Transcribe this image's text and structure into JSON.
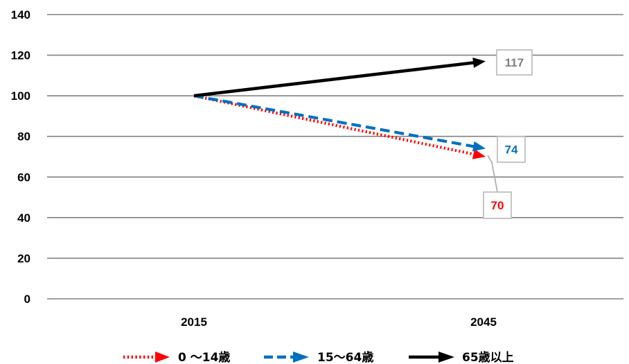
{
  "chart_data": {
    "type": "line",
    "title": "",
    "xlabel": "",
    "ylabel": "",
    "categories": [
      "2015",
      "2045"
    ],
    "ylim": [
      0,
      140
    ],
    "yticks": [
      0,
      20,
      40,
      60,
      80,
      100,
      120,
      140
    ],
    "y_tick_labels": [
      "0",
      "20",
      "40",
      "60",
      "80",
      "100",
      "120",
      "140"
    ],
    "grid": "horizontal",
    "legend_position": "bottom",
    "series": [
      {
        "name": "0 〜14歳",
        "values": [
          100,
          70
        ],
        "end_label": "70",
        "color": "#ff0000",
        "line_style": "dotted",
        "arrow": true
      },
      {
        "name": "15〜64歳",
        "values": [
          100,
          74
        ],
        "end_label": "74",
        "color": "#0070c0",
        "line_style": "dashed",
        "arrow": true
      },
      {
        "name": "65歳以上",
        "values": [
          100,
          117
        ],
        "end_label": "117",
        "color": "#000000",
        "line_style": "solid",
        "arrow": true
      }
    ],
    "label_colors": {
      "0 〜14歳": "#ff0000",
      "15〜64歳": "#0070c0",
      "65歳以上": "#7f7f7f"
    },
    "grid_color": "#808080",
    "label_border_color": "#bfbfbf"
  }
}
